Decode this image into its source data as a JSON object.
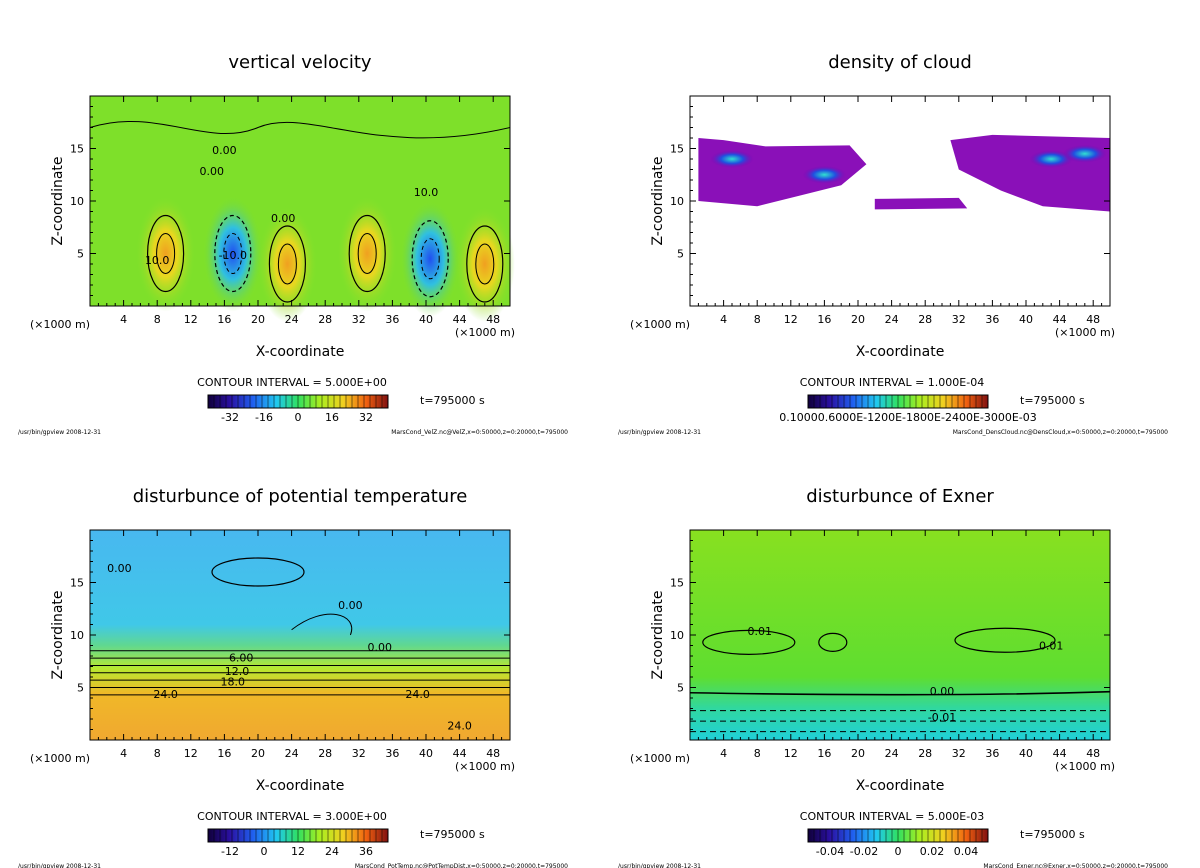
{
  "chart_data": [
    {
      "type": "contour",
      "title": "vertical velocity",
      "xlabel": "X-coordinate",
      "ylabel": "Z-coordinate",
      "xunit": "(×1000 m)",
      "yunit": "(×1000 m)",
      "xlim": [
        0,
        50
      ],
      "ylim": [
        0,
        20
      ],
      "xticks": [
        4,
        8,
        12,
        16,
        20,
        24,
        28,
        32,
        36,
        40,
        44,
        48
      ],
      "yticks": [
        5,
        10,
        15
      ],
      "contour_interval": "CONTOUR INTERVAL = 5.000E+00",
      "time": "t=795000 s",
      "colorbar_ticks": [
        "-32",
        "-16",
        "0",
        "16",
        "32"
      ],
      "contour_labels": [
        "10.0",
        "-10.0",
        "0.00",
        "0.00",
        "10.0",
        "0.00"
      ],
      "footer_left": "/usr/bin/gpview  2008-12-31",
      "footer_right": "MarsCond_VelZ.nc@VelZ,x=0:50000,z=0:20000,t=795000"
    },
    {
      "type": "contour",
      "title": "density of cloud",
      "xlabel": "X-coordinate",
      "ylabel": "Z-coordinate",
      "xunit": "(×1000 m)",
      "yunit": "(×1000 m)",
      "xlim": [
        0,
        50
      ],
      "ylim": [
        0,
        20
      ],
      "xticks": [
        4,
        8,
        12,
        16,
        20,
        24,
        28,
        32,
        36,
        40,
        44,
        48
      ],
      "yticks": [
        5,
        10,
        15
      ],
      "contour_interval": "CONTOUR INTERVAL = 1.000E-04",
      "time": "t=795000 s",
      "colorbar_ticks": [
        "0.10000.6000E-1200E-1800E-2400E-3000E-03"
      ],
      "contour_labels": [],
      "footer_left": "/usr/bin/gpview  2008-12-31",
      "footer_right": "MarsCond_DensCloud.nc@DensCloud,x=0:50000,z=0:20000,t=795000"
    },
    {
      "type": "contour",
      "title": "disturbunce of potential temperature",
      "xlabel": "X-coordinate",
      "ylabel": "Z-coordinate",
      "xunit": "(×1000 m)",
      "yunit": "(×1000 m)",
      "xlim": [
        0,
        50
      ],
      "ylim": [
        0,
        20
      ],
      "xticks": [
        4,
        8,
        12,
        16,
        20,
        24,
        28,
        32,
        36,
        40,
        44,
        48
      ],
      "yticks": [
        5,
        10,
        15
      ],
      "contour_interval": "CONTOUR INTERVAL = 3.000E+00",
      "time": "t=795000 s",
      "colorbar_ticks": [
        "-12",
        "0",
        "12",
        "24",
        "36"
      ],
      "contour_labels": [
        "0.00",
        "0.00",
        "0.00",
        "6.00",
        "12.0",
        "18.0",
        "24.0",
        "24.0",
        "24.0"
      ],
      "footer_left": "/usr/bin/gpview  2008-12-31",
      "footer_right": "MarsCond_PotTemp.nc@PotTempDist,x=0:50000,z=0:20000,t=795000"
    },
    {
      "type": "contour",
      "title": "disturbunce of Exner",
      "xlabel": "X-coordinate",
      "ylabel": "Z-coordinate",
      "xunit": "(×1000 m)",
      "yunit": "(×1000 m)",
      "xlim": [
        0,
        50
      ],
      "ylim": [
        0,
        20
      ],
      "xticks": [
        4,
        8,
        12,
        16,
        20,
        24,
        28,
        32,
        36,
        40,
        44,
        48
      ],
      "yticks": [
        5,
        10,
        15
      ],
      "contour_interval": "CONTOUR INTERVAL = 5.000E-03",
      "time": "t=795000 s",
      "colorbar_ticks": [
        "-0.04",
        "-0.02",
        "0",
        "0.02",
        "0.04"
      ],
      "contour_labels": [
        "0.01",
        "0.01",
        "0.00",
        "-0.01"
      ],
      "footer_left": "/usr/bin/gpview  2008-12-31",
      "footer_right": "MarsCond_Exner.nc@Exner,x=0:50000,z=0:20000,t=795000"
    }
  ]
}
